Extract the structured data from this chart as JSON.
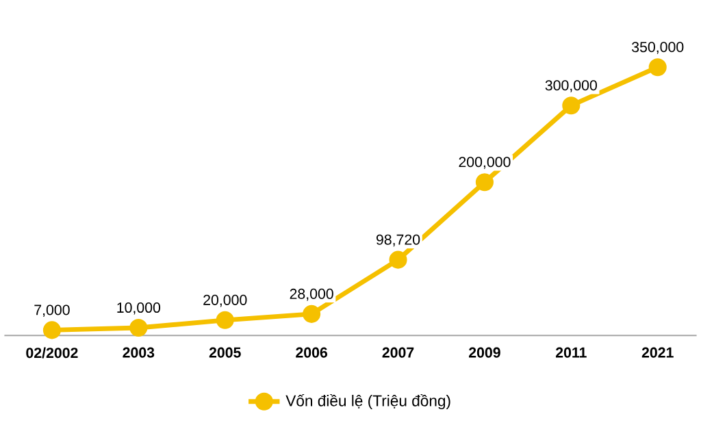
{
  "chart_data": {
    "type": "line",
    "categories": [
      "02/2002",
      "2003",
      "2005",
      "2006",
      "2007",
      "2009",
      "2011",
      "2021"
    ],
    "series": [
      {
        "name": "Vốn điều lệ (Triệu  đồng)",
        "color": "#f5c000",
        "values": [
          7000,
          10000,
          20000,
          28000,
          98720,
          200000,
          300000,
          350000
        ],
        "value_labels": [
          "7,000",
          "10,000",
          "20,000",
          "28,000",
          "98,720",
          "200,000",
          "300,000",
          "350,000"
        ]
      }
    ],
    "legend": "bottom",
    "marker": "circle",
    "line_style": "solid",
    "tick_labels": "x"
  }
}
